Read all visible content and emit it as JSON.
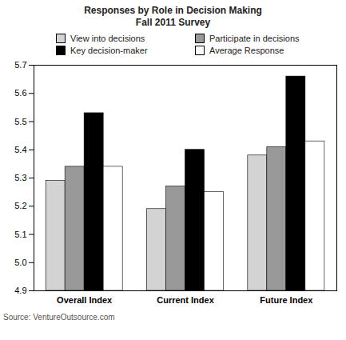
{
  "chart_data": {
    "type": "bar",
    "title": "Responses by Role in Decision Making",
    "subtitle": "Fall 2011 Survey",
    "categories": [
      "Overall Index",
      "Current Index",
      "Future Index"
    ],
    "series": [
      {
        "name": "View into decisions",
        "color": "#d3d3d3",
        "values": [
          5.29,
          5.19,
          5.38
        ]
      },
      {
        "name": "Participate in decisions",
        "color": "#999999",
        "values": [
          5.34,
          5.27,
          5.41
        ]
      },
      {
        "name": "Key decision-maker",
        "color": "#000000",
        "values": [
          5.53,
          5.4,
          5.66
        ]
      },
      {
        "name": "Average Response",
        "color": "#ffffff",
        "values": [
          5.34,
          5.25,
          5.43
        ]
      }
    ],
    "ylim": [
      4.9,
      5.7
    ],
    "yticks": [
      4.9,
      {
        "value": 5,
        "label": "5.0"
      },
      5.1,
      5.2,
      5.3,
      5.4,
      5.5,
      5.6,
      5.7
    ],
    "grid": false,
    "legend": "top",
    "source": "Source: VentureOutsource.com"
  }
}
